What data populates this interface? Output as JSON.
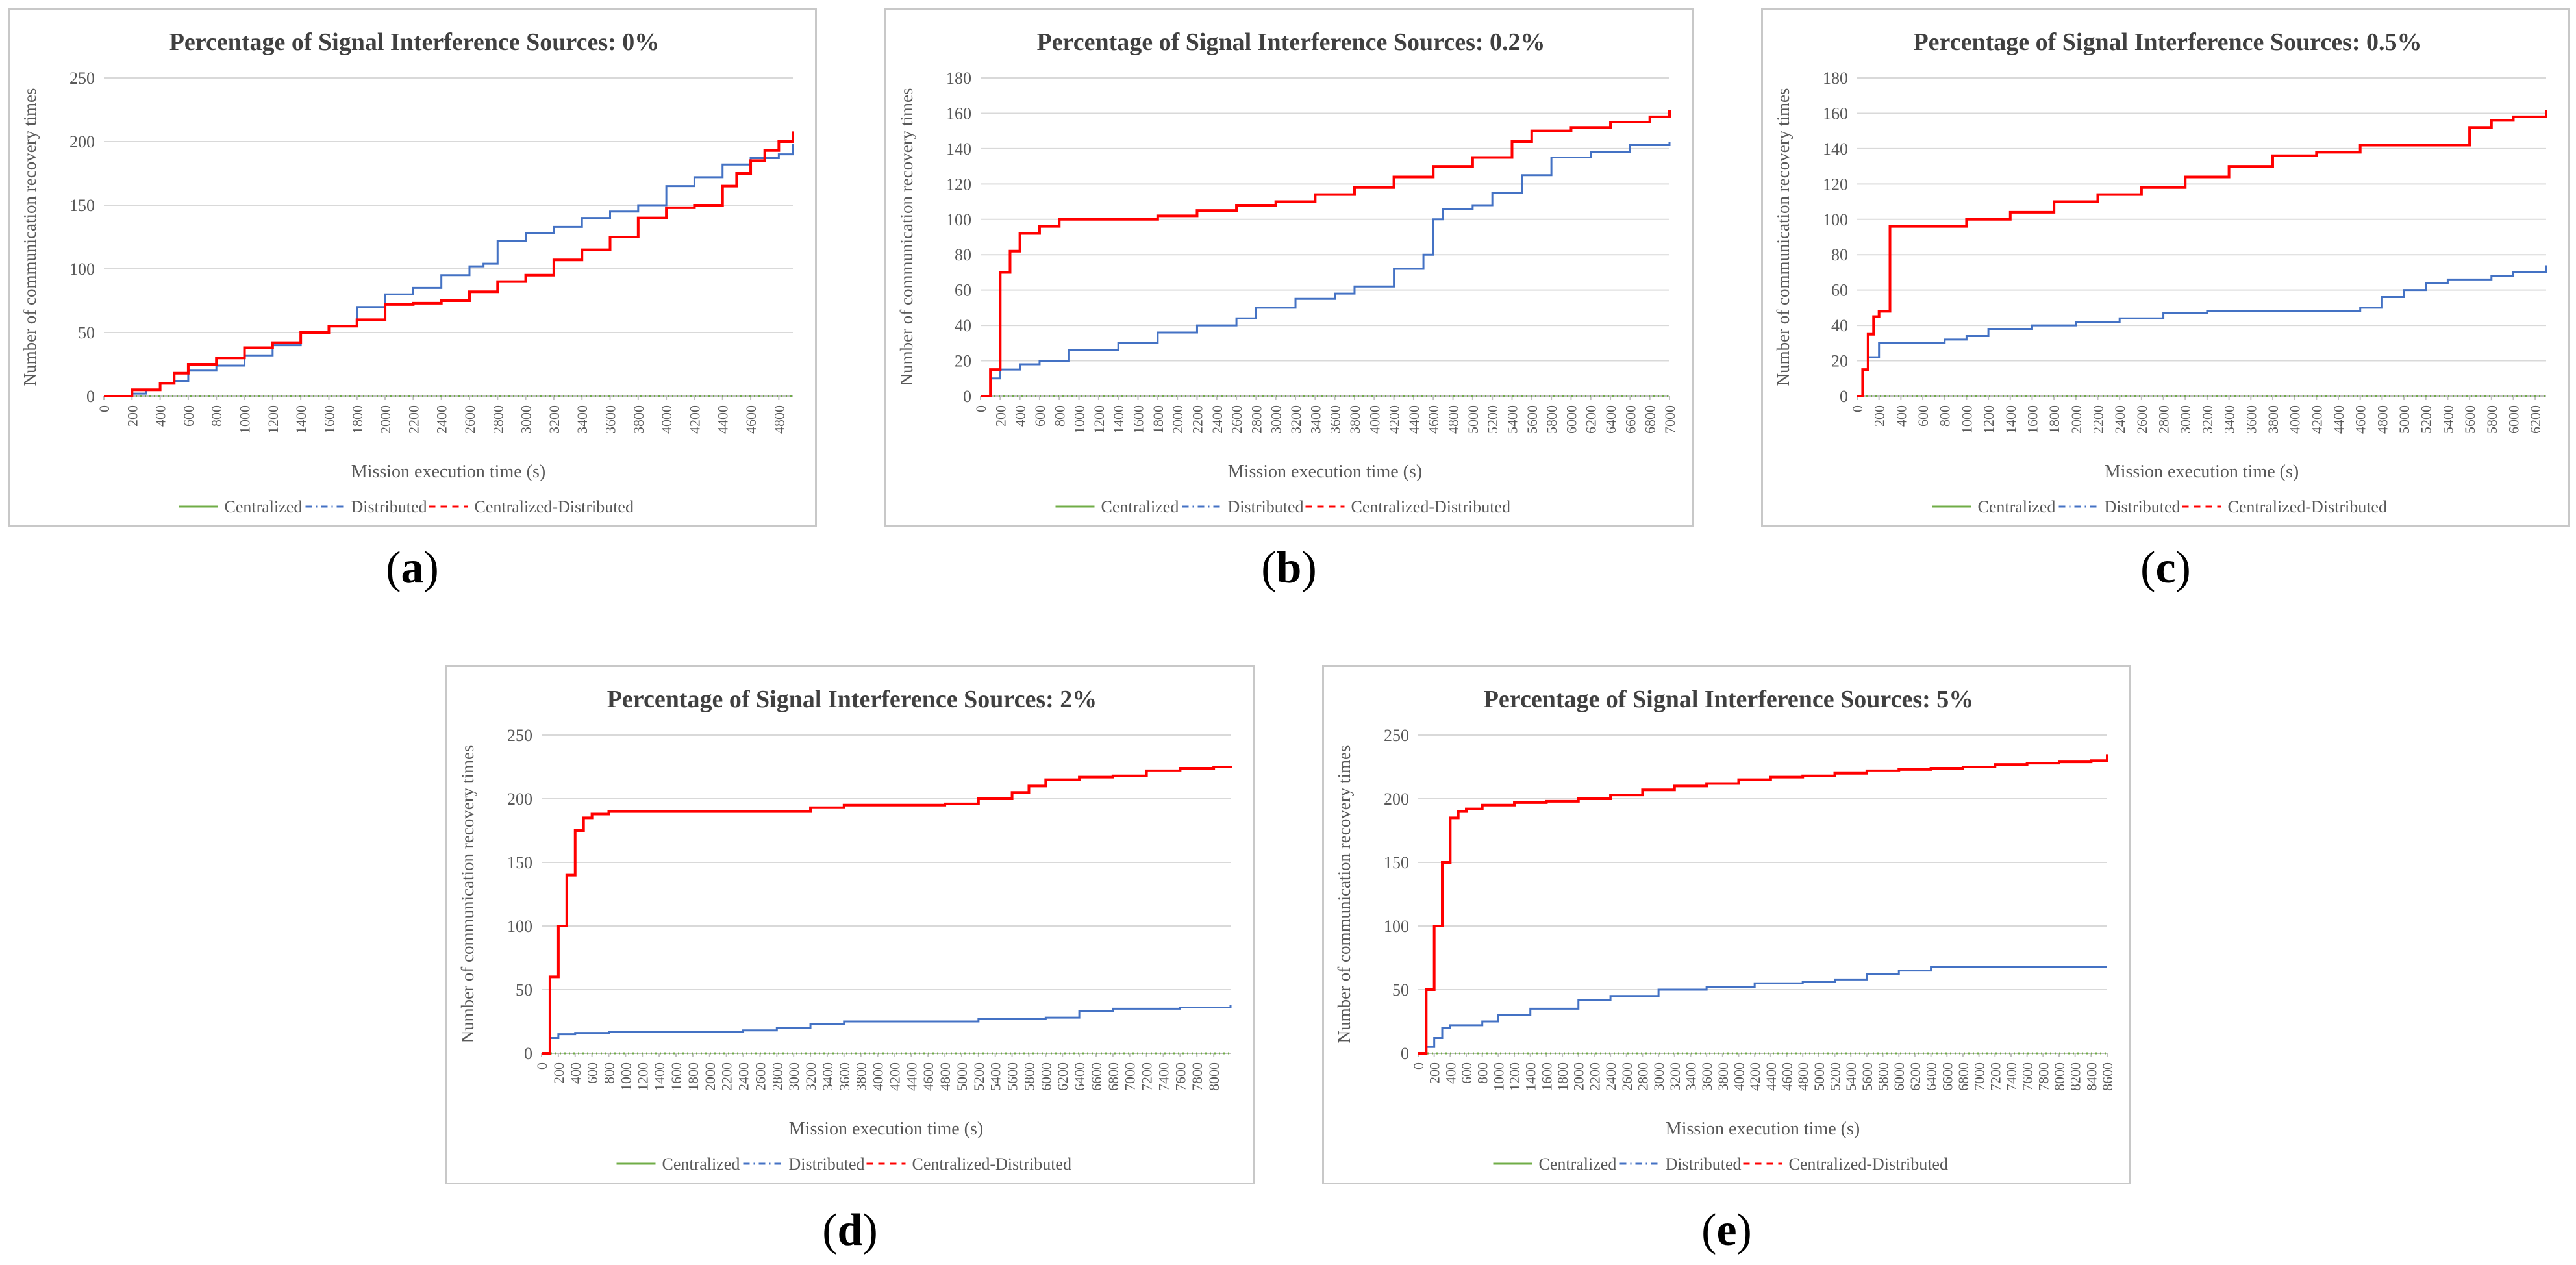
{
  "colors": {
    "centralized": "#70ad47",
    "distributed": "#4472c4",
    "centralized_distributed": "#ff0000",
    "grid": "#d9d9d9",
    "axis": "#bfbfbf",
    "text": "#595959",
    "title": "#404040"
  },
  "legend": {
    "centralized": "Centralized",
    "distributed": "Distributed",
    "centralized_distributed": "Centralized-Distributed"
  },
  "chart_data": [
    {
      "type": "line",
      "label": "a",
      "title": "Percentage of Signal Interference Sources: 0%",
      "xlabel": "Mission execution time (s)",
      "ylabel": "Number of communication recovery times",
      "xlim": [
        0,
        4900
      ],
      "x_ticks": [
        0,
        200,
        400,
        600,
        800,
        1000,
        1200,
        1400,
        1600,
        1800,
        2000,
        2200,
        2400,
        2600,
        2800,
        3000,
        3200,
        3400,
        3600,
        3800,
        4000,
        4200,
        4400,
        4600,
        4800
      ],
      "ylim": [
        0,
        250
      ],
      "y_ticks": [
        0,
        50,
        100,
        150,
        200,
        250
      ],
      "series": [
        {
          "name": "Centralized",
          "key": "centralized",
          "x": [
            0,
            4900
          ],
          "values": [
            0,
            0
          ]
        },
        {
          "name": "Distributed",
          "key": "distributed",
          "x": [
            0,
            200,
            300,
            400,
            500,
            600,
            800,
            1000,
            1200,
            1400,
            1600,
            1800,
            2000,
            2200,
            2400,
            2600,
            2700,
            2800,
            3000,
            3200,
            3400,
            3600,
            3800,
            4000,
            4200,
            4400,
            4600,
            4800,
            4900
          ],
          "values": [
            0,
            2,
            5,
            10,
            12,
            20,
            24,
            32,
            40,
            50,
            55,
            70,
            80,
            85,
            95,
            102,
            104,
            122,
            128,
            133,
            140,
            145,
            150,
            165,
            172,
            182,
            187,
            190,
            198
          ]
        },
        {
          "name": "Centralized-Distributed",
          "key": "centralized_distributed",
          "x": [
            0,
            200,
            400,
            500,
            600,
            800,
            1000,
            1200,
            1400,
            1600,
            1800,
            2000,
            2200,
            2400,
            2600,
            2800,
            3000,
            3200,
            3400,
            3600,
            3800,
            4000,
            4200,
            4400,
            4500,
            4600,
            4700,
            4800,
            4900
          ],
          "values": [
            0,
            5,
            10,
            18,
            25,
            30,
            38,
            42,
            50,
            55,
            60,
            72,
            73,
            75,
            82,
            90,
            95,
            107,
            115,
            125,
            140,
            148,
            150,
            165,
            175,
            185,
            193,
            200,
            208
          ]
        }
      ]
    },
    {
      "type": "line",
      "label": "b",
      "title": "Percentage of Signal Interference Sources: 0.2%",
      "xlabel": "Mission execution time (s)",
      "ylabel": "Number of communication recovery times",
      "xlim": [
        0,
        7000
      ],
      "x_ticks": [
        0,
        200,
        400,
        600,
        800,
        1000,
        1200,
        1400,
        1600,
        1800,
        2000,
        2200,
        2400,
        2600,
        2800,
        3000,
        3200,
        3400,
        3600,
        3800,
        4000,
        4200,
        4400,
        4600,
        4800,
        5000,
        5200,
        5400,
        5600,
        5800,
        6000,
        6200,
        6400,
        6600,
        6800,
        7000
      ],
      "ylim": [
        0,
        180
      ],
      "y_ticks": [
        0,
        20,
        40,
        60,
        80,
        100,
        120,
        140,
        160,
        180
      ],
      "series": [
        {
          "name": "Centralized",
          "key": "centralized",
          "x": [
            0,
            7000
          ],
          "values": [
            0,
            0
          ]
        },
        {
          "name": "Distributed",
          "key": "distributed",
          "x": [
            0,
            100,
            200,
            400,
            600,
            900,
            1400,
            1800,
            2200,
            2600,
            2800,
            3200,
            3600,
            3800,
            4200,
            4500,
            4600,
            4700,
            5000,
            5200,
            5500,
            5800,
            6200,
            6600,
            7000
          ],
          "values": [
            0,
            10,
            15,
            18,
            20,
            26,
            30,
            36,
            40,
            44,
            50,
            55,
            58,
            62,
            72,
            80,
            100,
            106,
            108,
            115,
            125,
            135,
            138,
            142,
            144
          ]
        },
        {
          "name": "Centralized-Distributed",
          "key": "centralized_distributed",
          "x": [
            0,
            100,
            200,
            300,
            400,
            600,
            800,
            1000,
            1400,
            1800,
            2200,
            2600,
            3000,
            3400,
            3800,
            4200,
            4600,
            5000,
            5400,
            5600,
            6000,
            6400,
            6800,
            7000
          ],
          "values": [
            0,
            15,
            70,
            82,
            92,
            96,
            100,
            100,
            100,
            102,
            105,
            108,
            110,
            114,
            118,
            124,
            130,
            135,
            144,
            150,
            152,
            155,
            158,
            162
          ]
        }
      ]
    },
    {
      "type": "line",
      "label": "c",
      "title": "Percentage of Signal Interference Sources: 0.5%",
      "xlabel": "Mission execution time (s)",
      "ylabel": "Number of communication recovery times",
      "xlim": [
        0,
        6300
      ],
      "x_ticks": [
        0,
        200,
        400,
        600,
        800,
        1000,
        1200,
        1400,
        1600,
        1800,
        2000,
        2200,
        2400,
        2600,
        2800,
        3000,
        3200,
        3400,
        3600,
        3800,
        4000,
        4200,
        4400,
        4600,
        4800,
        5000,
        5200,
        5400,
        5600,
        5800,
        6000,
        6200
      ],
      "ylim": [
        0,
        180
      ],
      "y_ticks": [
        0,
        20,
        40,
        60,
        80,
        100,
        120,
        140,
        160,
        180
      ],
      "series": [
        {
          "name": "Centralized",
          "key": "centralized",
          "x": [
            0,
            6300
          ],
          "values": [
            0,
            0
          ]
        },
        {
          "name": "Distributed",
          "key": "distributed",
          "x": [
            0,
            50,
            100,
            200,
            400,
            800,
            1000,
            1200,
            1600,
            2000,
            2400,
            2800,
            3200,
            3600,
            4000,
            4400,
            4600,
            4800,
            5000,
            5200,
            5400,
            5800,
            6000,
            6300
          ],
          "values": [
            0,
            15,
            22,
            30,
            30,
            32,
            34,
            38,
            40,
            42,
            44,
            47,
            48,
            48,
            48,
            48,
            50,
            56,
            60,
            64,
            66,
            68,
            70,
            74
          ]
        },
        {
          "name": "Centralized-Distributed",
          "key": "centralized_distributed",
          "x": [
            0,
            50,
            100,
            150,
            200,
            300,
            400,
            800,
            1000,
            1400,
            1800,
            2200,
            2600,
            3000,
            3400,
            3800,
            4200,
            4600,
            5200,
            5500,
            5600,
            5800,
            6000,
            6300
          ],
          "values": [
            0,
            15,
            35,
            45,
            48,
            96,
            96,
            96,
            100,
            104,
            110,
            114,
            118,
            124,
            130,
            136,
            138,
            142,
            142,
            142,
            152,
            156,
            158,
            162
          ]
        }
      ]
    },
    {
      "type": "line",
      "label": "d",
      "title": "Percentage of Signal Interference Sources: 2%",
      "xlabel": "Mission execution time (s)",
      "ylabel": "Number of communication recovery times",
      "xlim": [
        0,
        8200
      ],
      "x_ticks": [
        0,
        200,
        400,
        600,
        800,
        1000,
        1200,
        1400,
        1600,
        1800,
        2000,
        2200,
        2400,
        2600,
        2800,
        3000,
        3200,
        3400,
        3600,
        3800,
        4000,
        4200,
        4400,
        4600,
        4800,
        5000,
        5200,
        5400,
        5600,
        5800,
        6000,
        6200,
        6400,
        6600,
        6800,
        7000,
        7200,
        7400,
        7600,
        7800,
        8000
      ],
      "ylim": [
        0,
        250
      ],
      "y_ticks": [
        0,
        50,
        100,
        150,
        200,
        250
      ],
      "series": [
        {
          "name": "Centralized",
          "key": "centralized",
          "x": [
            0,
            8200
          ],
          "values": [
            0,
            0
          ]
        },
        {
          "name": "Distributed",
          "key": "distributed",
          "x": [
            0,
            100,
            200,
            400,
            800,
            1200,
            1600,
            2000,
            2400,
            2800,
            3200,
            3600,
            4000,
            4400,
            4800,
            5200,
            5600,
            6000,
            6400,
            6800,
            7200,
            7600,
            8000,
            8200
          ],
          "values": [
            0,
            12,
            15,
            16,
            17,
            17,
            17,
            17,
            18,
            20,
            23,
            25,
            25,
            25,
            25,
            27,
            27,
            28,
            33,
            35,
            35,
            36,
            36,
            38
          ]
        },
        {
          "name": "Centralized-Distributed",
          "key": "centralized_distributed",
          "x": [
            0,
            100,
            200,
            300,
            400,
            500,
            600,
            800,
            1200,
            1600,
            2000,
            2400,
            2800,
            3200,
            3600,
            4000,
            4400,
            4800,
            5200,
            5600,
            5800,
            6000,
            6400,
            6800,
            7200,
            7600,
            8000,
            8200
          ],
          "values": [
            0,
            60,
            100,
            140,
            175,
            185,
            188,
            190,
            190,
            190,
            190,
            190,
            190,
            193,
            195,
            195,
            195,
            196,
            200,
            205,
            210,
            215,
            217,
            218,
            222,
            224,
            225,
            226
          ]
        }
      ]
    },
    {
      "type": "line",
      "label": "e",
      "title": "Percentage of Signal Interference Sources: 5%",
      "xlabel": "Mission execution time (s)",
      "ylabel": "Number of communication recovery times",
      "xlim": [
        0,
        8600
      ],
      "x_ticks": [
        0,
        200,
        400,
        600,
        800,
        1000,
        1200,
        1400,
        1600,
        1800,
        2000,
        2200,
        2400,
        2600,
        2800,
        3000,
        3200,
        3400,
        3600,
        3800,
        4000,
        4200,
        4400,
        4600,
        4800,
        5000,
        5200,
        5400,
        5600,
        5800,
        6000,
        6200,
        6400,
        6600,
        6800,
        7000,
        7200,
        7400,
        7600,
        7800,
        8000,
        8200,
        8400,
        8600
      ],
      "ylim": [
        0,
        250
      ],
      "y_ticks": [
        0,
        50,
        100,
        150,
        200,
        250
      ],
      "series": [
        {
          "name": "Centralized",
          "key": "centralized",
          "x": [
            0,
            8600
          ],
          "values": [
            0,
            0
          ]
        },
        {
          "name": "Distributed",
          "key": "distributed",
          "x": [
            0,
            100,
            200,
            300,
            400,
            800,
            1000,
            1400,
            2000,
            2400,
            3000,
            3600,
            4200,
            4800,
            5200,
            5600,
            6000,
            6400,
            6800,
            7200,
            7600,
            8000,
            8600
          ],
          "values": [
            0,
            5,
            12,
            20,
            22,
            25,
            30,
            35,
            42,
            45,
            50,
            52,
            55,
            56,
            58,
            62,
            65,
            68,
            68,
            68,
            68,
            68,
            68
          ]
        },
        {
          "name": "Centralized-Distributed",
          "key": "centralized_distributed",
          "x": [
            0,
            100,
            200,
            300,
            400,
            500,
            600,
            800,
            1200,
            1600,
            2000,
            2400,
            2800,
            3200,
            3600,
            4000,
            4400,
            4800,
            5200,
            5600,
            6000,
            6400,
            6800,
            7200,
            7600,
            8000,
            8400,
            8600
          ],
          "values": [
            0,
            50,
            100,
            150,
            185,
            190,
            192,
            195,
            197,
            198,
            200,
            203,
            207,
            210,
            212,
            215,
            217,
            218,
            220,
            222,
            223,
            224,
            225,
            227,
            228,
            229,
            230,
            235
          ]
        }
      ]
    }
  ]
}
